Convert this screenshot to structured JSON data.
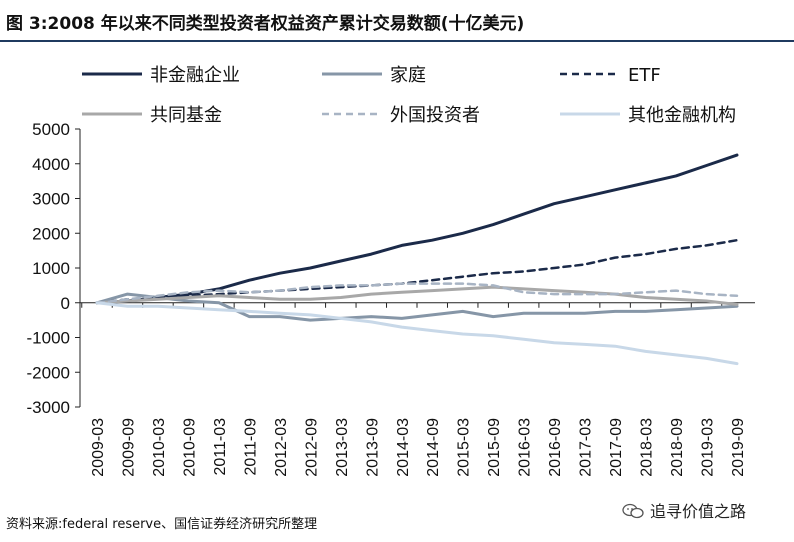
{
  "chart_data": {
    "type": "line",
    "title": "图 3:2008 年以来不同类型投资者权益资产累计交易数额(十亿美元)",
    "xlabel": "",
    "ylabel": "",
    "ylim": [
      -3000,
      5000
    ],
    "yticks": [
      "5000",
      "4000",
      "3000",
      "2000",
      "1000",
      "0",
      "-1000",
      "-2000",
      "-3000"
    ],
    "grid": false,
    "legend_position": "top",
    "categories": [
      "2009-03",
      "2009-09",
      "2010-03",
      "2010-09",
      "2011-03",
      "2011-09",
      "2012-03",
      "2012-09",
      "2013-03",
      "2013-09",
      "2014-03",
      "2014-09",
      "2015-03",
      "2015-09",
      "2016-03",
      "2016-09",
      "2017-03",
      "2017-09",
      "2018-03",
      "2018-09",
      "2019-03",
      "2019-09"
    ],
    "series": [
      {
        "name": "非金融企业",
        "color": "#1b2a49",
        "style": "solid",
        "width": 3,
        "values": [
          0,
          50,
          150,
          250,
          400,
          650,
          850,
          1000,
          1200,
          1400,
          1650,
          1800,
          2000,
          2250,
          2550,
          2850,
          3050,
          3250,
          3450,
          3650,
          3950,
          4250
        ]
      },
      {
        "name": "家庭",
        "color": "#8696a7",
        "style": "solid",
        "width": 3,
        "values": [
          0,
          250,
          150,
          50,
          0,
          -400,
          -400,
          -500,
          -450,
          -400,
          -450,
          -350,
          -250,
          -400,
          -300,
          -300,
          -300,
          -250,
          -250,
          -200,
          -150,
          -100
        ]
      },
      {
        "name": "ETF",
        "color": "#1b2a49",
        "style": "dash",
        "width": 2.5,
        "values": [
          0,
          100,
          150,
          200,
          250,
          300,
          350,
          400,
          450,
          500,
          550,
          650,
          750,
          850,
          900,
          1000,
          1100,
          1300,
          1400,
          1550,
          1650,
          1800
        ]
      },
      {
        "name": "共同基金",
        "color": "#a8a8a8",
        "style": "solid",
        "width": 3,
        "values": [
          0,
          50,
          100,
          150,
          200,
          150,
          100,
          100,
          150,
          250,
          300,
          350,
          400,
          450,
          400,
          350,
          300,
          250,
          150,
          100,
          50,
          -50
        ]
      },
      {
        "name": "外国投资者",
        "color": "#a8b4c4",
        "style": "dash",
        "width": 2.5,
        "values": [
          0,
          100,
          200,
          300,
          350,
          300,
          350,
          450,
          500,
          500,
          550,
          550,
          550,
          500,
          300,
          250,
          250,
          250,
          300,
          350,
          250,
          200
        ]
      },
      {
        "name": "其他金融机构",
        "color": "#c8d8e8",
        "style": "solid",
        "width": 3,
        "values": [
          0,
          -100,
          -100,
          -150,
          -200,
          -250,
          -300,
          -350,
          -450,
          -550,
          -700,
          -800,
          -900,
          -950,
          -1050,
          -1150,
          -1200,
          -1250,
          -1400,
          -1500,
          -1600,
          -1750
        ]
      }
    ]
  },
  "source": "资料来源:federal reserve、国信证券经济研究所整理",
  "watermark": "追寻价值之路"
}
